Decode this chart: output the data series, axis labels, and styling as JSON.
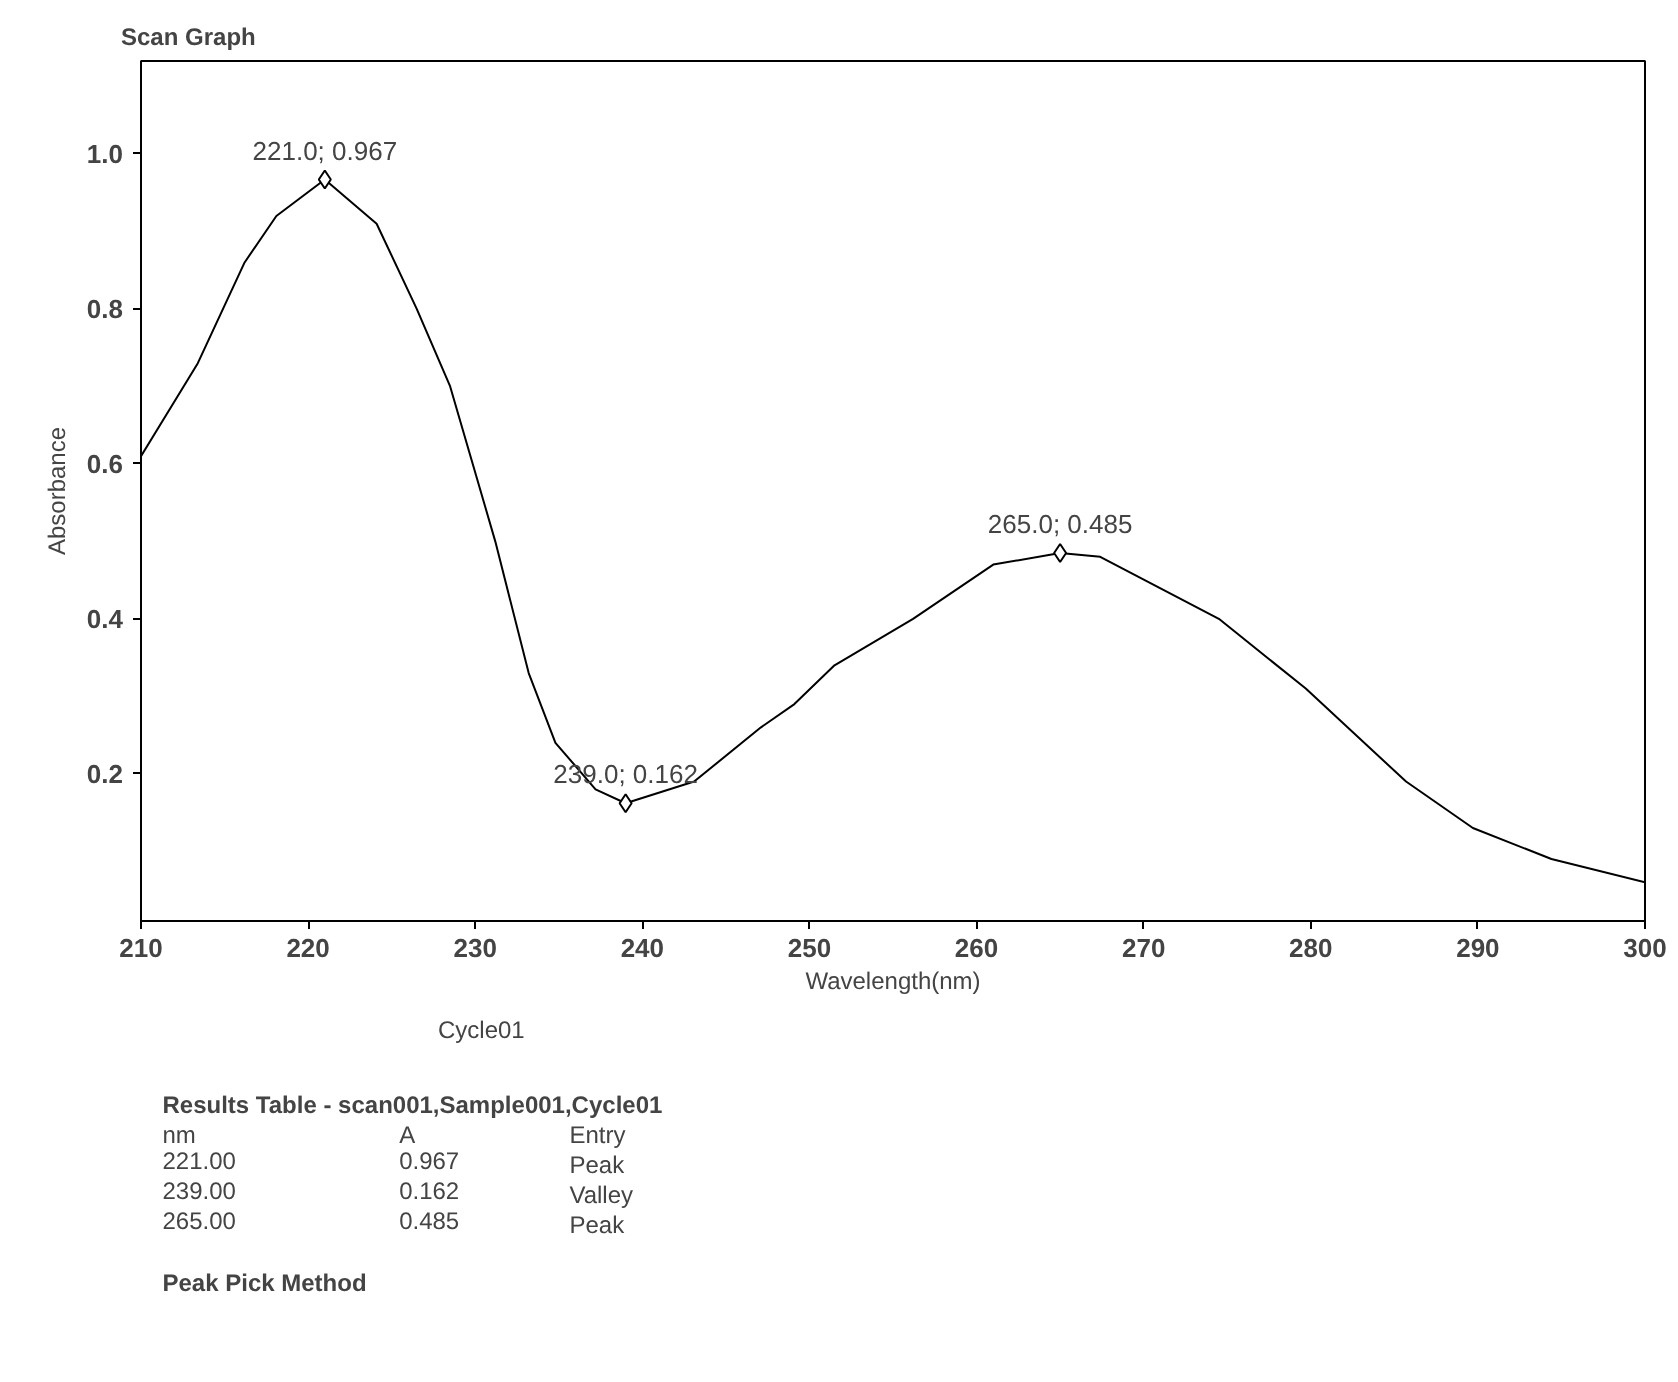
{
  "chart_data": {
    "type": "line",
    "title": "Scan Graph",
    "xlabel": "Wavelength(nm)",
    "ylabel": "Absorbance",
    "xlim": [
      210,
      300
    ],
    "xticks": [
      210,
      220,
      230,
      240,
      250,
      260,
      270,
      280,
      290,
      300
    ],
    "ylim": [
      0.01,
      1.12
    ],
    "yticks": [
      0.2,
      0.4,
      0.6,
      0.8,
      {
        "value": 1.0,
        "label": "1.0"
      }
    ],
    "grid": false,
    "legend": "bottom left",
    "line_style": "solid",
    "series": [
      {
        "name": "Cycle01",
        "color": "#000000",
        "marker": "none",
        "x": [
          210,
          213.4,
          216.2,
          218.1,
          221,
          224.1,
          226.5,
          228.5,
          231.2,
          233.2,
          234.8,
          237.2,
          239,
          243.1,
          247.1,
          249.1,
          251.5,
          256.2,
          261,
          265,
          267.4,
          274.5,
          279.7,
          285.7,
          289.7,
          294.4,
          300
        ],
        "values": [
          0.61,
          0.73,
          0.86,
          0.92,
          0.967,
          0.91,
          0.8,
          0.7,
          0.5,
          0.33,
          0.24,
          0.18,
          0.162,
          0.19,
          0.26,
          0.29,
          0.34,
          0.4,
          0.47,
          0.485,
          0.48,
          0.4,
          0.31,
          0.19,
          0.13,
          0.09,
          0.06
        ]
      },
      {
        "type": "scatter",
        "color": "#000000",
        "marker": "diamond",
        "x": [
          221,
          239,
          265
        ],
        "values": [
          0.967,
          0.162,
          0.485
        ]
      }
    ],
    "annotations": [
      {
        "text": "221.0; 0.967",
        "x": 221,
        "y": 0.967
      },
      {
        "text": "239.0; 0.162",
        "x": 239,
        "y": 0.162
      },
      {
        "text": "265.0; 0.485",
        "x": 265,
        "y": 0.485
      },
      "Results Table - scan001,Sample001,Cycle01",
      "nm\tA\tEntry",
      "221.00\t0.967\tPeak",
      "239.00\t0.162\tValley",
      "265.00\t0.485\tPeak",
      "Peak Pick Method"
    ]
  }
}
